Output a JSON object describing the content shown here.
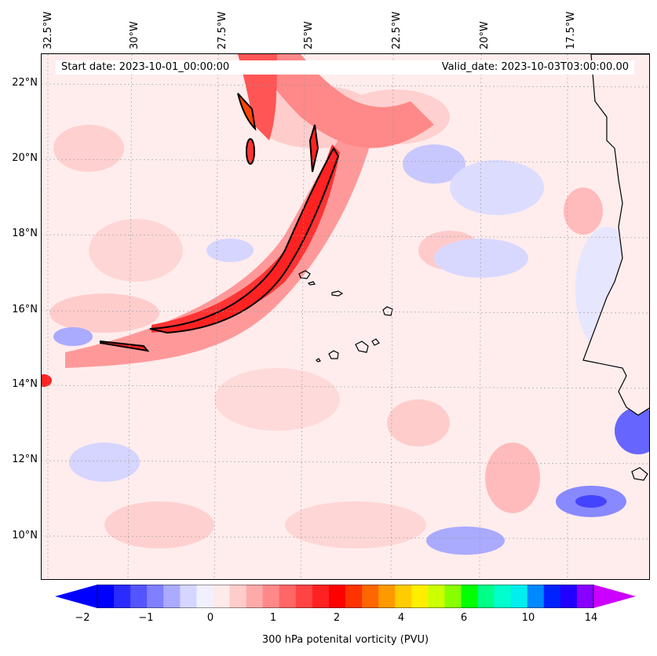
{
  "header": {
    "start_date": "Start date: 2023-10-01_00:00:00",
    "valid_date": "Valid_date: 2023-10-03T03:00:00.00"
  },
  "axes": {
    "lon_labels": [
      "32.5°W",
      "30°W",
      "27.5°W",
      "25°W",
      "22.5°W",
      "20°W",
      "17.5°W"
    ],
    "lat_labels": [
      "22°N",
      "20°N",
      "18°N",
      "16°N",
      "14°N",
      "12°N",
      "10°N"
    ]
  },
  "colorbar": {
    "label": "300 hPa potenital vorticity (PVU)",
    "ticks": [
      "−2",
      "−1",
      "0",
      "1",
      "2",
      "4",
      "6",
      "10",
      "14"
    ],
    "colors": [
      "#0000ff",
      "#2b2bff",
      "#5555ff",
      "#8080ff",
      "#aaaaff",
      "#d5d5ff",
      "#f0f0ff",
      "#ffeaea",
      "#ffcccc",
      "#ffaaaa",
      "#ff8888",
      "#ff6666",
      "#ff4444",
      "#ff2222",
      "#ff0000",
      "#ff3300",
      "#ff6600",
      "#ff9900",
      "#ffcc00",
      "#ffee00",
      "#ccff00",
      "#88ff00",
      "#00ff00",
      "#00ff88",
      "#00ffcc",
      "#00eeee",
      "#0088ff",
      "#0022ff",
      "#2200ff",
      "#8800ff"
    ],
    "extend_low_color": "#0000ff",
    "extend_high_color": "#cc00ff"
  }
}
